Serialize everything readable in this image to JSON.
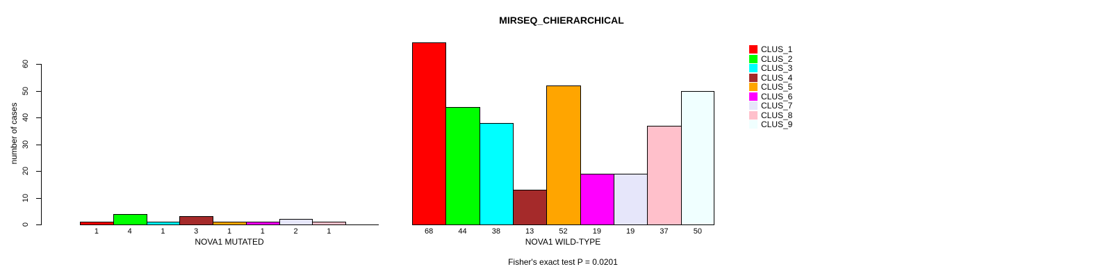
{
  "chart_data": {
    "type": "bar",
    "title": "MIRSEQ_CHIERARCHICAL",
    "ylabel": "number of cases",
    "ylim": [
      0,
      68
    ],
    "yticks": [
      0,
      10,
      20,
      30,
      40,
      50,
      60
    ],
    "grid": false,
    "legend_position": "right",
    "clusters": [
      {
        "label": "CLUS_1",
        "color": "#FF0000"
      },
      {
        "label": "CLUS_2",
        "color": "#00FF00"
      },
      {
        "label": "CLUS_3",
        "color": "#00FFFF"
      },
      {
        "label": "CLUS_4",
        "color": "#A52A2A"
      },
      {
        "label": "CLUS_5",
        "color": "#FFA500"
      },
      {
        "label": "CLUS_6",
        "color": "#FF00FF"
      },
      {
        "label": "CLUS_7",
        "color": "#E6E6FA"
      },
      {
        "label": "CLUS_8",
        "color": "#FFC0CB"
      },
      {
        "label": "CLUS_9",
        "color": "#F0FFFF"
      }
    ],
    "groups": [
      {
        "xlabel": "NOVA1 MUTATED",
        "values": [
          1,
          4,
          1,
          3,
          1,
          1,
          2,
          1,
          0
        ],
        "bar_labels": [
          "1",
          "4",
          "1",
          "3",
          "1",
          "1",
          "2",
          "1",
          ""
        ]
      },
      {
        "xlabel": "NOVA1 WILD-TYPE",
        "values": [
          68,
          44,
          38,
          13,
          52,
          19,
          19,
          37,
          50
        ],
        "bar_labels": [
          "68",
          "44",
          "38",
          "13",
          "52",
          "19",
          "19",
          "37",
          "50"
        ]
      }
    ],
    "annotation": "Fisher's exact test P = 0.0201"
  }
}
